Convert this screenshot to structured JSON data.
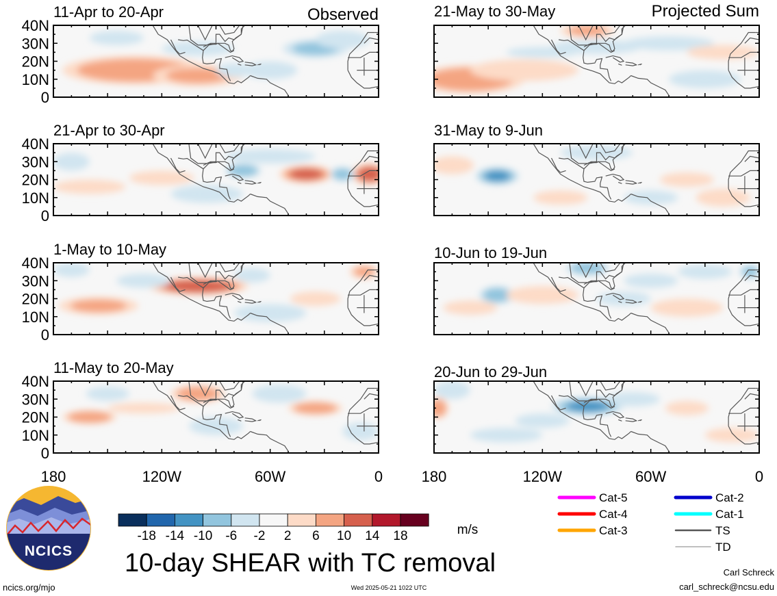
{
  "figure": {
    "title": "10-day SHEAR with TC removal",
    "unit": "m/s",
    "website": "ncics.org/mjo",
    "timestamp": "Wed 2025-05-21 1022 UTC",
    "author": "Carl Schreck",
    "email": "carl_schreck@ncsu.edu",
    "logo_text": "NCICS"
  },
  "columns": [
    {
      "label": "Observed"
    },
    {
      "label": "Projected Sum"
    }
  ],
  "panels": [
    {
      "period": "11-Apr to 20-Apr",
      "column": 0,
      "row": 0,
      "blobs": [
        [
          135,
          15,
          40,
          8,
          9
        ],
        [
          100,
          12,
          25,
          6,
          6
        ],
        [
          35,
          27,
          18,
          5,
          -6
        ],
        [
          100,
          27,
          20,
          4,
          -5
        ],
        [
          20,
          32,
          15,
          5,
          -4
        ],
        [
          60,
          15,
          15,
          5,
          -3
        ],
        [
          80,
          15,
          10,
          4,
          -3
        ],
        [
          145,
          33,
          15,
          4,
          -3
        ]
      ]
    },
    {
      "period": "21-Apr to 30-Apr",
      "column": 0,
      "row": 1,
      "blobs": [
        [
          40,
          23,
          15,
          5,
          11
        ],
        [
          5,
          23,
          10,
          6,
          12
        ],
        [
          160,
          16,
          20,
          4,
          4
        ],
        [
          120,
          21,
          18,
          4,
          3
        ],
        [
          20,
          23,
          7,
          4,
          -8
        ],
        [
          75,
          25,
          10,
          4,
          -9
        ],
        [
          60,
          33,
          25,
          4,
          -4
        ],
        [
          170,
          30,
          10,
          5,
          -5
        ],
        [
          95,
          12,
          20,
          5,
          -3
        ]
      ]
    },
    {
      "period": "1-May to 10-May",
      "column": 0,
      "row": 2,
      "blobs": [
        [
          100,
          27,
          28,
          5,
          13
        ],
        [
          155,
          16,
          22,
          5,
          6
        ],
        [
          35,
          20,
          14,
          4,
          5
        ],
        [
          8,
          35,
          8,
          4,
          6
        ],
        [
          170,
          36,
          10,
          4,
          -5
        ],
        [
          70,
          33,
          10,
          4,
          -5
        ],
        [
          130,
          30,
          15,
          4,
          -3
        ],
        [
          60,
          12,
          20,
          5,
          -3
        ]
      ]
    },
    {
      "period": "11-May to 20-May",
      "column": 0,
      "row": 3,
      "blobs": [
        [
          160,
          20,
          15,
          4,
          9
        ],
        [
          100,
          33,
          15,
          5,
          8
        ],
        [
          35,
          25,
          15,
          4,
          9
        ],
        [
          130,
          25,
          20,
          3,
          4
        ],
        [
          150,
          33,
          12,
          4,
          -5
        ],
        [
          55,
          33,
          15,
          5,
          -3
        ],
        [
          90,
          15,
          15,
          5,
          -3
        ],
        [
          10,
          12,
          10,
          5,
          -3
        ]
      ]
    },
    {
      "period": "21-May to 30-May",
      "column": 1,
      "row": 0,
      "blobs": [
        [
          160,
          10,
          30,
          8,
          9
        ],
        [
          130,
          15,
          30,
          6,
          5
        ],
        [
          95,
          37,
          15,
          4,
          6
        ],
        [
          90,
          28,
          25,
          4,
          -5
        ],
        [
          120,
          25,
          20,
          3,
          -4
        ],
        [
          30,
          10,
          20,
          5,
          -3
        ],
        [
          50,
          30,
          25,
          4,
          -3
        ],
        [
          20,
          25,
          20,
          4,
          3
        ]
      ]
    },
    {
      "period": "31-May to 9-Jun",
      "column": 1,
      "row": 1,
      "blobs": [
        [
          145,
          22,
          12,
          5,
          -10
        ],
        [
          40,
          20,
          15,
          4,
          4
        ],
        [
          170,
          28,
          12,
          5,
          4
        ],
        [
          90,
          35,
          20,
          4,
          -3
        ],
        [
          20,
          10,
          15,
          5,
          4
        ],
        [
          60,
          10,
          15,
          4,
          -4
        ],
        [
          110,
          10,
          15,
          4,
          3
        ]
      ]
    },
    {
      "period": "10-Jun to 19-Jun",
      "column": 1,
      "row": 2,
      "blobs": [
        [
          145,
          22,
          10,
          5,
          -8
        ],
        [
          120,
          22,
          20,
          5,
          5
        ],
        [
          95,
          37,
          12,
          4,
          -8
        ],
        [
          60,
          30,
          15,
          4,
          -4
        ],
        [
          30,
          35,
          15,
          4,
          -5
        ],
        [
          160,
          15,
          15,
          4,
          4
        ],
        [
          40,
          15,
          20,
          5,
          3
        ],
        [
          5,
          35,
          6,
          4,
          -6
        ],
        [
          75,
          20,
          15,
          4,
          -3
        ]
      ]
    },
    {
      "period": "20-Jun to 29-Jun",
      "column": 1,
      "row": 3,
      "blobs": [
        [
          95,
          26,
          20,
          5,
          -10
        ],
        [
          178,
          25,
          6,
          6,
          9
        ],
        [
          170,
          35,
          10,
          5,
          -5
        ],
        [
          40,
          25,
          12,
          4,
          5
        ],
        [
          15,
          10,
          15,
          4,
          5
        ],
        [
          120,
          18,
          15,
          4,
          -3
        ],
        [
          70,
          30,
          15,
          4,
          -3
        ],
        [
          140,
          10,
          20,
          4,
          -3
        ]
      ]
    }
  ],
  "axes": {
    "y_ticks": [
      "40N",
      "30N",
      "20N",
      "10N",
      "0"
    ],
    "y_values": [
      40,
      30,
      20,
      10,
      0
    ],
    "x_ticks": [
      "180",
      "120W",
      "60W",
      "0"
    ],
    "x_values": [
      180,
      120,
      60,
      0
    ],
    "lon_range": [
      180,
      0
    ],
    "lat_range": [
      0,
      40
    ]
  },
  "colorbar": {
    "labels": [
      "-18",
      "-14",
      "-10",
      "-6",
      "-2",
      "2",
      "6",
      "10",
      "14",
      "18"
    ],
    "colors": [
      "#0a2f5c",
      "#2166ac",
      "#4393c3",
      "#92c5de",
      "#d1e5f0",
      "#f7f7f7",
      "#fddbc7",
      "#f4a582",
      "#d6604d",
      "#b2182b",
      "#67001f"
    ]
  },
  "legend": [
    {
      "label": "Cat-5",
      "color": "#ff00ff"
    },
    {
      "label": "Cat-4",
      "color": "#ff0000"
    },
    {
      "label": "Cat-3",
      "color": "#ffa500"
    },
    {
      "label": "Cat-2",
      "color": "#0000cc"
    },
    {
      "label": "Cat-1",
      "color": "#00ffff"
    },
    {
      "label": "TS",
      "color": "#555555"
    },
    {
      "label": "TD",
      "color": "#aaaaaa"
    }
  ]
}
